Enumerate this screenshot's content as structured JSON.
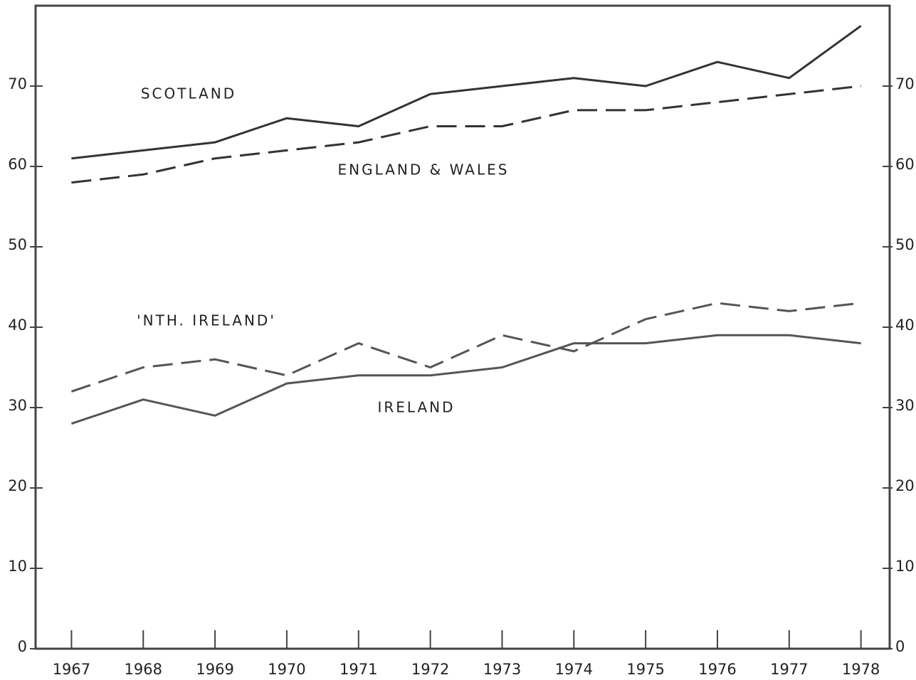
{
  "chart_data": {
    "type": "line",
    "x": [
      1967,
      1968,
      1969,
      1970,
      1971,
      1972,
      1973,
      1974,
      1975,
      1976,
      1977,
      1978
    ],
    "xlim": [
      1966.5,
      1978.4
    ],
    "xticks": [
      1967,
      1968,
      1969,
      1970,
      1971,
      1972,
      1973,
      1974,
      1975,
      1976,
      1977,
      1978
    ],
    "ylim": [
      0,
      80
    ],
    "yticks": [
      0,
      10,
      20,
      30,
      40,
      50,
      60,
      70
    ],
    "series": [
      {
        "name": "SCOTLAND",
        "color": "#333333",
        "style": "solid",
        "values": [
          61,
          62,
          63,
          66,
          65,
          69,
          70,
          71,
          70,
          73,
          71,
          77.5
        ]
      },
      {
        "name": "ENGLAND & WALES",
        "color": "#333333",
        "style": "dashed",
        "values": [
          58,
          59,
          61,
          62,
          63,
          65,
          65,
          67,
          67,
          68,
          69,
          70
        ]
      },
      {
        "name": "'NTH. IRELAND'",
        "color": "#555555",
        "style": "dashed",
        "values": [
          32,
          35,
          36,
          34,
          38,
          35,
          39,
          37,
          41,
          43,
          42,
          43
        ]
      },
      {
        "name": "IRELAND",
        "color": "#555555",
        "style": "solid",
        "values": [
          28,
          31,
          29,
          33,
          34,
          34,
          35,
          38,
          38,
          39,
          39,
          38
        ]
      }
    ]
  }
}
